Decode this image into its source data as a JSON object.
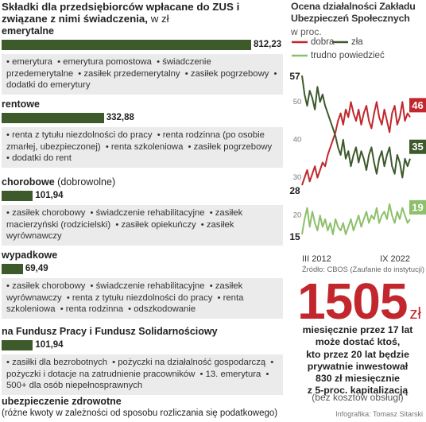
{
  "chart_data": [
    {
      "type": "bar",
      "orientation": "horizontal",
      "title": "Składki dla przedsiębiorców wpłacane do ZUS i związane z nimi świadczenia,",
      "subtitle": "w zł",
      "categories": [
        "emerytalne",
        "rentowe",
        "chorobowe",
        "wypadkowe",
        "na Fundusz Pracy i Fundusz Solidarnościowy"
      ],
      "values": [
        812.23,
        332.88,
        101.94,
        69.49,
        101.94
      ],
      "value_labels": [
        "812,23",
        "332,88",
        "101,94",
        "69,49",
        "101,94"
      ],
      "color": "#3d5a2b",
      "details": [
        {
          "items": [
            "emerytura",
            "emerytura pomostowa",
            "świadczenie przedemerytalne",
            "zasiłek przedemerytalny",
            "zasiłek pogrzebowy",
            "dodatki do emerytury"
          ]
        },
        {
          "items": [
            "renta z tytułu niezdolności do pracy",
            "renta rodzinna (po osobie zmarłej, ubezpieczonej)",
            "renta szkoleniowa",
            "zasiłek pogrzebowy",
            "dodatki do rent"
          ]
        },
        {
          "qualifier": "(dobrowolne)",
          "items": [
            "zasiłek chorobowy",
            "świadczenie rehabilitacyjne",
            "zasiłek macierzyński (rodzicielski)",
            "zasiłek opiekuńczy",
            "zasiłek wyrównawczy"
          ]
        },
        {
          "items": [
            "zasiłek chorobowy",
            "świadczenie rehabilitacyjne",
            "zasiłek wyrównawczy",
            "renta z tytułu niezdolności do pracy",
            "renta szkoleniowa",
            "renta rodzinna",
            "odszkodowanie"
          ]
        },
        {
          "items": [
            "zasiłki dla bezrobotnych",
            "pożyczki na działalność gospodarczą",
            "pożyczki i dotacje na zatrudnienie pracowników",
            "13. emerytura",
            "500+ dla osób niepełnosprawnych"
          ]
        }
      ]
    },
    {
      "type": "line",
      "title": "Ocena działalności Zakładu Ubezpieczeń Społecznych",
      "subtitle": "w proc.",
      "x": [
        "III 2012",
        null,
        null,
        null,
        null,
        null,
        null,
        null,
        null,
        null,
        null,
        null,
        null,
        null,
        null,
        null,
        null,
        null,
        null,
        null,
        null,
        null,
        null,
        null,
        null,
        null,
        null,
        null,
        null,
        null,
        null,
        null,
        null,
        null,
        null,
        null,
        null,
        null,
        null,
        null,
        null,
        null,
        "IX 2022"
      ],
      "series": [
        {
          "name": "dobra",
          "color": "#c1272d",
          "values": [
            28,
            30,
            32,
            29,
            31,
            33,
            30,
            32,
            34,
            33,
            36,
            38,
            40,
            42,
            45,
            47,
            44,
            48,
            46,
            50,
            47,
            45,
            48,
            44,
            47,
            49,
            45,
            43,
            47,
            50,
            46,
            44,
            48,
            45,
            42,
            47,
            49,
            44,
            46,
            50,
            45,
            47,
            46
          ]
        },
        {
          "name": "zła",
          "color": "#3d5a2b",
          "values": [
            57,
            52,
            49,
            53,
            51,
            48,
            54,
            50,
            52,
            49,
            47,
            45,
            43,
            41,
            38,
            36,
            40,
            35,
            37,
            33,
            36,
            38,
            34,
            37,
            35,
            32,
            36,
            38,
            34,
            31,
            35,
            37,
            33,
            36,
            38,
            33,
            31,
            36,
            34,
            30,
            35,
            33,
            35
          ]
        },
        {
          "name": "trudno powiedzieć",
          "color": "#8cc06a",
          "values": [
            15,
            19,
            22,
            17,
            21,
            18,
            16,
            20,
            17,
            19,
            16,
            18,
            15,
            19,
            17,
            16,
            18,
            15,
            17,
            19,
            16,
            18,
            20,
            17,
            19,
            21,
            18,
            20,
            19,
            22,
            18,
            20,
            21,
            19,
            23,
            20,
            18,
            21,
            19,
            22,
            20,
            18,
            19
          ]
        }
      ],
      "ylim": [
        13,
        59
      ],
      "yticks": [
        20,
        30,
        40,
        50
      ],
      "grid": false,
      "source": "Źródło: CBOS (Zaufanie do instytucji)"
    }
  ],
  "health_insurance": {
    "label": "ubezpieczenie zdrowotne",
    "qualifier": "(różne kwoty w zależności od sposobu rozliczania się podatkowego)"
  },
  "calculator": {
    "amount": 1505,
    "unit": "zł",
    "lines": [
      "miesięcznie przez 17 lat",
      "może dostać ktoś,",
      "kto przez 20 lat będzie",
      "prywatnie inwestował",
      "830 zł miesięcznie",
      "z 5-proc. kapitalizacją"
    ],
    "note": "(bez kosztów obsługi)"
  },
  "credit": "Infografika: Tomasz Sitarski"
}
